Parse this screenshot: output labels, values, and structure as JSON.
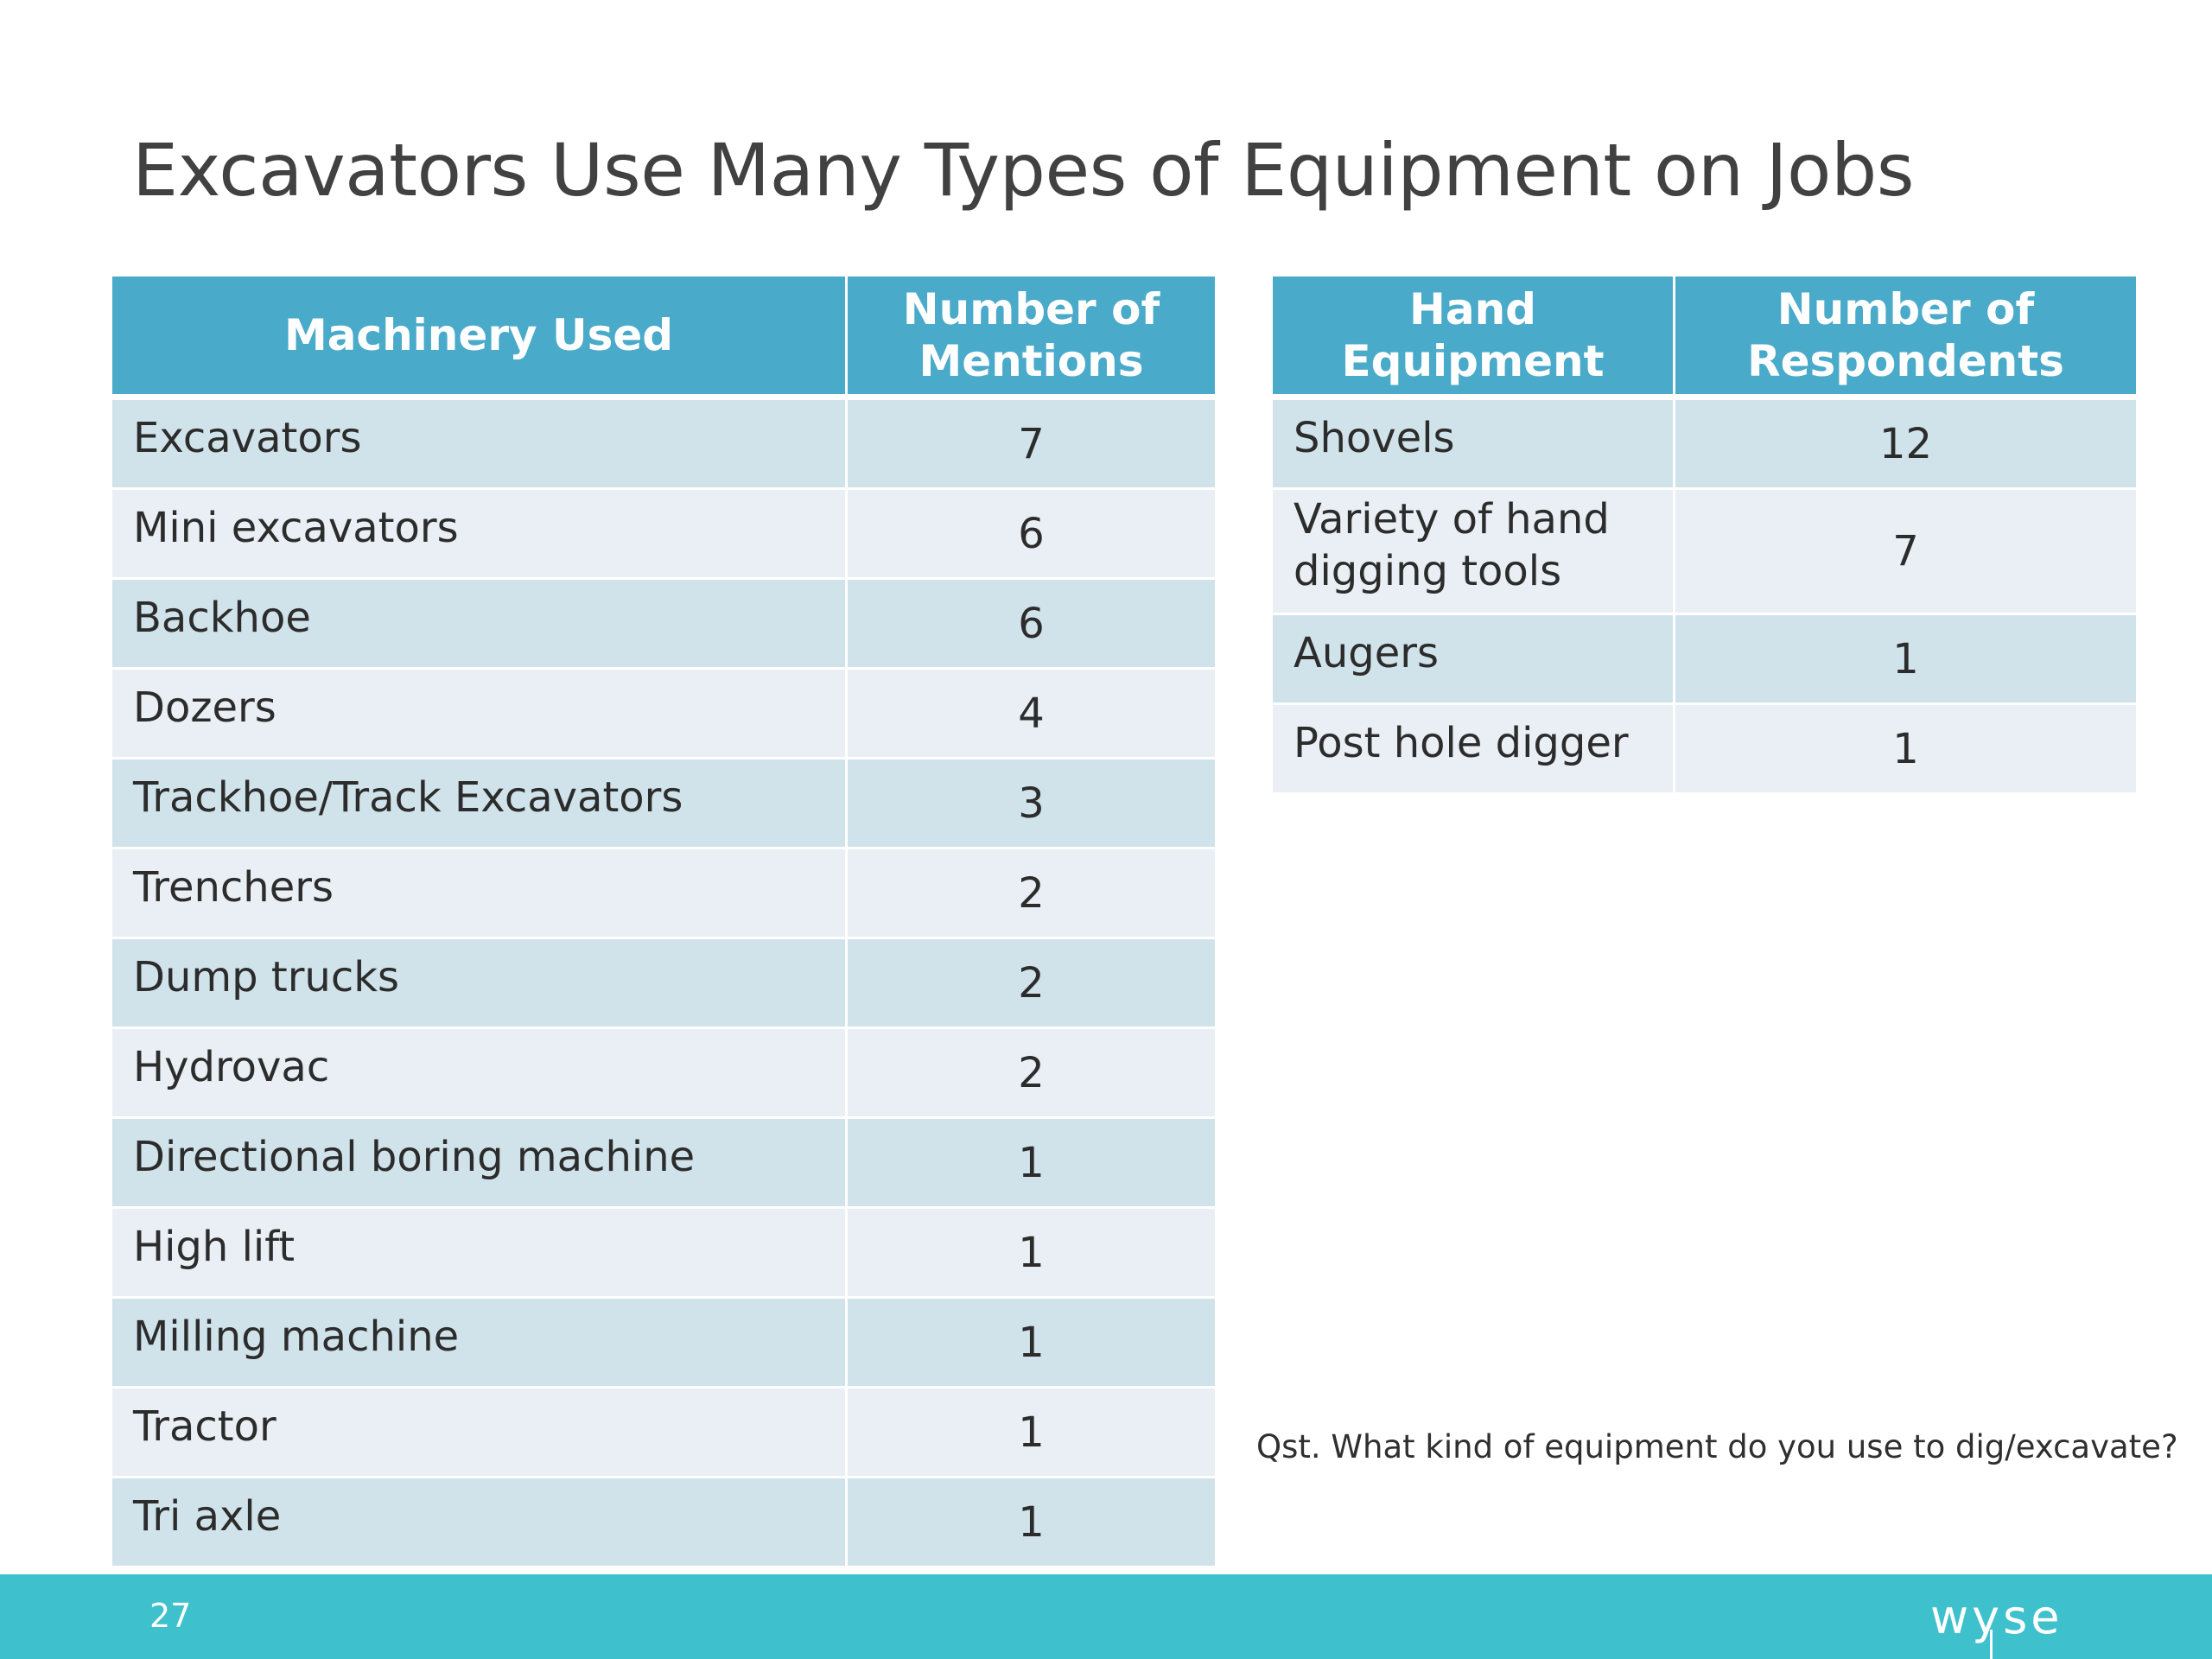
{
  "title": "Excavators Use Many Types of Equipment on Jobs",
  "machinery_table": {
    "headers": [
      "Machinery Used",
      "Number of Mentions"
    ],
    "rows": [
      {
        "label": "Excavators",
        "value": "7"
      },
      {
        "label": "Mini excavators",
        "value": "6"
      },
      {
        "label": "Backhoe",
        "value": "6"
      },
      {
        "label": "Dozers",
        "value": "4"
      },
      {
        "label": "Trackhoe/Track Excavators",
        "value": "3"
      },
      {
        "label": "Trenchers",
        "value": "2"
      },
      {
        "label": "Dump trucks",
        "value": "2"
      },
      {
        "label": "Hydrovac",
        "value": "2"
      },
      {
        "label": "Directional boring machine",
        "value": "1"
      },
      {
        "label": "High lift",
        "value": "1"
      },
      {
        "label": "Milling machine",
        "value": "1"
      },
      {
        "label": "Tractor",
        "value": "1"
      },
      {
        "label": "Tri axle",
        "value": "1"
      }
    ]
  },
  "hand_table": {
    "headers": [
      "Hand Equipment",
      "Number of Respondents"
    ],
    "rows": [
      {
        "label": "Shovels",
        "value": "12"
      },
      {
        "label": "Variety of hand digging tools",
        "value": "7"
      },
      {
        "label": "Augers",
        "value": "1"
      },
      {
        "label": "Post hole digger",
        "value": "1"
      }
    ]
  },
  "question": "Qst. What kind of equipment do you use to dig/excavate?",
  "footer": {
    "page_number": "27",
    "logo_text": "wyse"
  },
  "colors": {
    "header_fill": "#4aaac9",
    "row_band_dark": "#d0e3ea",
    "row_band_light": "#e9eff4",
    "footer_bar": "#3fc1cd"
  }
}
